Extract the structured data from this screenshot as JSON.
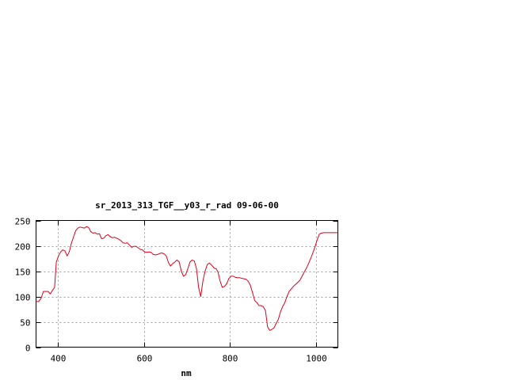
{
  "chart_data": {
    "type": "line",
    "title": "sr_2013_313_TGF__y03_r_rad 09-06-00",
    "xlabel": "nm",
    "ylabel": "",
    "xlim": [
      350,
      1050
    ],
    "ylim": [
      0,
      250
    ],
    "x_ticks": [
      400,
      600,
      800,
      1000
    ],
    "y_ticks": [
      0,
      50,
      100,
      150,
      200,
      250
    ],
    "x_tick_labels": [
      "400",
      "600",
      "800",
      "1000"
    ],
    "y_tick_labels": [
      "0",
      "50",
      "100",
      "150",
      "200",
      "250"
    ],
    "grid": true,
    "line_color": "#e0001a",
    "series": [
      {
        "x": [
          350,
          356,
          362,
          367,
          372,
          378,
          383,
          388,
          393,
          397,
          402,
          407,
          412,
          417,
          422,
          427,
          432,
          437,
          442,
          447,
          452,
          457,
          462,
          467,
          472,
          477,
          482,
          487,
          492,
          497,
          502,
          507,
          512,
          517,
          522,
          527,
          532,
          537,
          542,
          547,
          552,
          557,
          562,
          567,
          572,
          577,
          582,
          587,
          592,
          597,
          602,
          607,
          612,
          617,
          622,
          627,
          632,
          637,
          642,
          647,
          652,
          657,
          662,
          667,
          672,
          677,
          682,
          687,
          692,
          697,
          702,
          707,
          712,
          717,
          722,
          727,
          732,
          737,
          742,
          747,
          752,
          756,
          759,
          762,
          765,
          768,
          772,
          777,
          782,
          787,
          792,
          797,
          802,
          807,
          812,
          817,
          822,
          827,
          832,
          837,
          842,
          847,
          852,
          857,
          862,
          867,
          872,
          877,
          882,
          887,
          892,
          897,
          902,
          907,
          912,
          917,
          922,
          927,
          932,
          937,
          942,
          947,
          952,
          957,
          962,
          967,
          972,
          977,
          982,
          987,
          992,
          997,
          1002,
          1007,
          1012,
          1017,
          1022,
          1027,
          1032,
          1037,
          1042,
          1047,
          1050
        ],
        "y": [
          90,
          90,
          97,
          110,
          110,
          110,
          105,
          112,
          118,
          168,
          180,
          188,
          192,
          190,
          180,
          188,
          205,
          218,
          230,
          235,
          237,
          236,
          235,
          238,
          236,
          228,
          225,
          226,
          223,
          224,
          214,
          215,
          220,
          222,
          218,
          216,
          217,
          215,
          213,
          210,
          206,
          205,
          206,
          201,
          197,
          199,
          199,
          196,
          193,
          192,
          188,
          187,
          188,
          187,
          183,
          182,
          183,
          185,
          186,
          184,
          180,
          167,
          160,
          165,
          168,
          172,
          168,
          150,
          140,
          143,
          155,
          168,
          172,
          170,
          155,
          118,
          100,
          130,
          150,
          163,
          166,
          163,
          160,
          157,
          155,
          155,
          148,
          130,
          118,
          120,
          125,
          135,
          140,
          140,
          138,
          137,
          137,
          136,
          135,
          134,
          130,
          122,
          108,
          92,
          88,
          82,
          82,
          80,
          72,
          40,
          33,
          35,
          38,
          47,
          55,
          70,
          80,
          88,
          100,
          110,
          115,
          120,
          124,
          128,
          132,
          140,
          148,
          156,
          165,
          175,
          186,
          198,
          212,
          223,
          225,
          226,
          226,
          226,
          226,
          226,
          226,
          226,
          226
        ]
      }
    ]
  }
}
